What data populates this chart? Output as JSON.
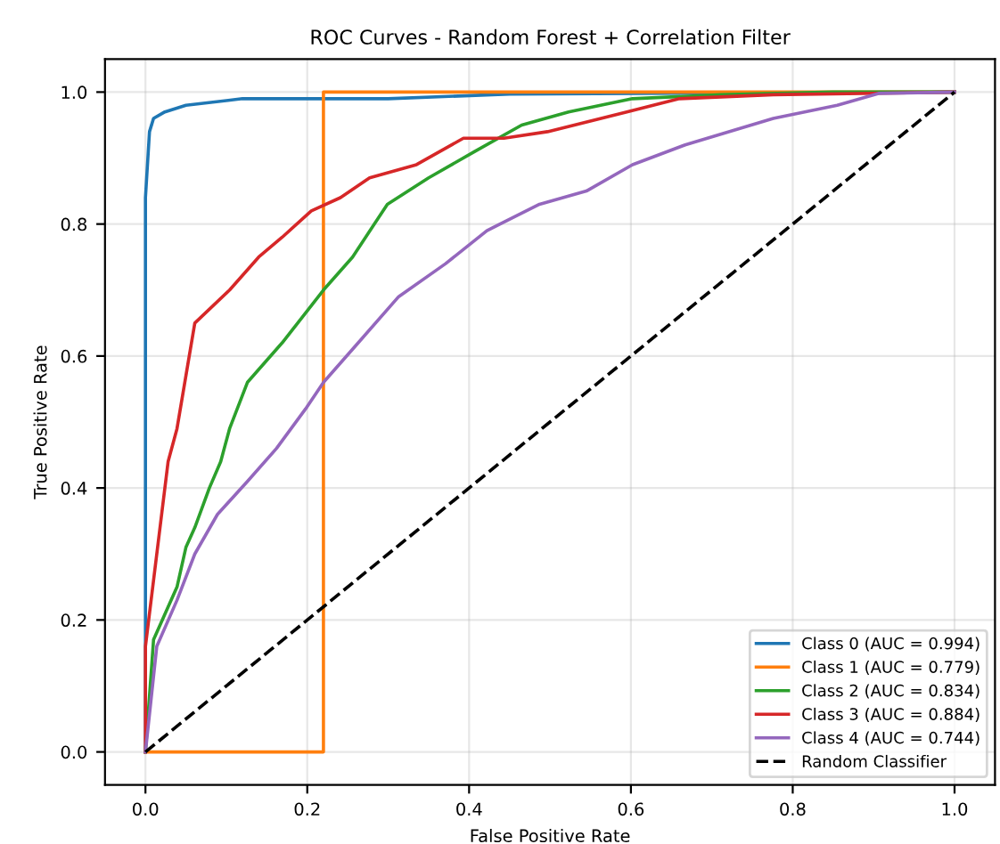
{
  "chart_data": {
    "type": "line",
    "title": "ROC Curves - Random Forest + Correlation Filter",
    "xlabel": "False Positive Rate",
    "ylabel": "True Positive Rate",
    "xlim": [
      -0.05,
      1.05
    ],
    "ylim": [
      -0.05,
      1.05
    ],
    "xticks": [
      {
        "value": 0,
        "label": "0.0"
      },
      {
        "value": 0.2,
        "label": "0.2"
      },
      {
        "value": 0.4,
        "label": "0.4"
      },
      {
        "value": 0.6,
        "label": "0.6"
      },
      {
        "value": 0.8,
        "label": "0.8"
      },
      {
        "value": 1,
        "label": "1.0"
      }
    ],
    "yticks": [
      {
        "value": 0,
        "label": "0.0"
      },
      {
        "value": 0.2,
        "label": "0.2"
      },
      {
        "value": 0.4,
        "label": "0.4"
      },
      {
        "value": 0.6,
        "label": "0.6"
      },
      {
        "value": 0.8,
        "label": "0.8"
      },
      {
        "value": 1,
        "label": "1.0"
      }
    ],
    "grid": true,
    "legend": "bottom right",
    "marker": "none",
    "series": [
      {
        "name": "Class 0 (AUC = 0.994)",
        "color": "#1f77b4",
        "x": [
          0,
          0,
          0.005,
          0.01,
          0.024,
          0.05,
          0.12,
          0.3,
          0.45,
          1
        ],
        "values": [
          0,
          0.84,
          0.94,
          0.96,
          0.97,
          0.98,
          0.99,
          0.99,
          0.997,
          1
        ]
      },
      {
        "name": "Class 1 (AUC = 0.779)",
        "color": "#ff7f0e",
        "x": [
          0,
          0.22,
          0.22,
          1
        ],
        "values": [
          0,
          0,
          1,
          1
        ]
      },
      {
        "name": "Class 2 (AUC = 0.834)",
        "color": "#2ca02c",
        "x": [
          0,
          0.01,
          0.039,
          0.05,
          0.061,
          0.079,
          0.093,
          0.104,
          0.126,
          0.169,
          0.22,
          0.256,
          0.299,
          0.35,
          0.407,
          0.465,
          0.523,
          0.602,
          0.711,
          0.85,
          1
        ],
        "values": [
          0,
          0.17,
          0.25,
          0.31,
          0.34,
          0.4,
          0.44,
          0.49,
          0.56,
          0.62,
          0.7,
          0.75,
          0.83,
          0.87,
          0.91,
          0.95,
          0.97,
          0.99,
          0.996,
          1,
          1
        ]
      },
      {
        "name": "Class 3 (AUC = 0.884)",
        "color": "#d62728",
        "x": [
          0,
          0,
          0.017,
          0.028,
          0.039,
          0.061,
          0.104,
          0.14,
          0.169,
          0.205,
          0.241,
          0.277,
          0.335,
          0.393,
          0.443,
          0.497,
          0.595,
          0.66,
          0.776,
          1
        ],
        "values": [
          0,
          0.16,
          0.33,
          0.44,
          0.49,
          0.65,
          0.7,
          0.75,
          0.78,
          0.82,
          0.84,
          0.87,
          0.89,
          0.93,
          0.93,
          0.94,
          0.97,
          0.99,
          0.996,
          1
        ]
      },
      {
        "name": "Class 4 (AUC = 0.744)",
        "color": "#9467bd",
        "x": [
          0,
          0.014,
          0.039,
          0.061,
          0.089,
          0.126,
          0.162,
          0.18,
          0.198,
          0.22,
          0.263,
          0.313,
          0.371,
          0.422,
          0.487,
          0.545,
          0.602,
          0.667,
          0.776,
          0.855,
          0.906,
          1
        ],
        "values": [
          0,
          0.16,
          0.23,
          0.3,
          0.36,
          0.41,
          0.46,
          0.49,
          0.52,
          0.56,
          0.62,
          0.69,
          0.74,
          0.79,
          0.83,
          0.85,
          0.89,
          0.92,
          0.96,
          0.98,
          0.998,
          1
        ]
      },
      {
        "name": "Random Classifier",
        "color": "#000000",
        "line_style": "dashed",
        "x": [
          0,
          1
        ],
        "values": [
          0,
          1
        ]
      }
    ]
  }
}
